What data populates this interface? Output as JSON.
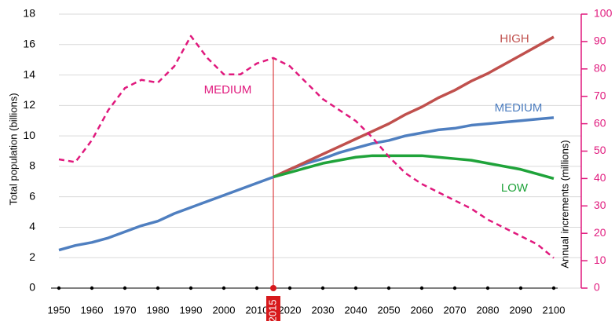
{
  "chart_data": {
    "type": "line",
    "y_label": "Total population (billions)",
    "y2_label": "Annual increments (millions)",
    "x": [
      1950,
      1955,
      1960,
      1965,
      1970,
      1975,
      1980,
      1985,
      1990,
      1995,
      2000,
      2005,
      2010,
      2015,
      2020,
      2025,
      2030,
      2035,
      2040,
      2045,
      2050,
      2055,
      2060,
      2065,
      2070,
      2075,
      2080,
      2085,
      2090,
      2095,
      2100
    ],
    "xlim": [
      1950,
      2100
    ],
    "xticks": [
      1950,
      1960,
      1970,
      1980,
      1990,
      2000,
      2010,
      2020,
      2030,
      2040,
      2050,
      2060,
      2070,
      2080,
      2090,
      2100
    ],
    "marker": {
      "x": 2015,
      "color": "#d7191c"
    },
    "ylim": [
      0,
      18
    ],
    "yticks": [
      0,
      2,
      4,
      6,
      8,
      10,
      12,
      14,
      16,
      18
    ],
    "y2lim": [
      0,
      100
    ],
    "y2ticks": [
      0,
      10,
      20,
      30,
      40,
      50,
      60,
      70,
      80,
      90,
      100
    ],
    "y2_color": "#e0197d",
    "grid": true,
    "series": [
      {
        "name": "MEDIUM",
        "color": "#4f7fc0",
        "dash": false,
        "values": [
          2.5,
          2.8,
          3.0,
          3.3,
          3.7,
          4.1,
          4.4,
          4.9,
          5.3,
          5.7,
          6.1,
          6.5,
          6.9,
          7.3,
          7.8,
          8.2,
          8.5,
          8.9,
          9.2,
          9.5,
          9.7,
          10.0,
          10.2,
          10.4,
          10.5,
          10.7,
          10.8,
          10.9,
          11.0,
          11.1,
          11.2
        ]
      },
      {
        "name": "HIGH",
        "color": "#c0504d",
        "dash": false,
        "values": [
          null,
          null,
          null,
          null,
          null,
          null,
          null,
          null,
          null,
          null,
          null,
          null,
          null,
          7.3,
          7.8,
          8.3,
          8.8,
          9.3,
          9.8,
          10.3,
          10.8,
          11.4,
          11.9,
          12.5,
          13.0,
          13.6,
          14.1,
          14.7,
          15.3,
          15.9,
          16.5
        ]
      },
      {
        "name": "LOW",
        "color": "#1fa33a",
        "dash": false,
        "values": [
          null,
          null,
          null,
          null,
          null,
          null,
          null,
          null,
          null,
          null,
          null,
          null,
          null,
          7.3,
          7.6,
          7.9,
          8.2,
          8.4,
          8.6,
          8.7,
          8.7,
          8.7,
          8.7,
          8.6,
          8.5,
          8.4,
          8.2,
          8.0,
          7.8,
          7.5,
          7.2
        ]
      },
      {
        "name": "MEDIUM",
        "color": "#e0197d",
        "dash": true,
        "axis": "y2",
        "values": [
          47,
          46,
          54,
          65,
          73,
          76,
          75,
          81,
          92,
          84,
          78,
          78,
          82,
          84,
          81,
          75,
          69,
          65,
          61,
          55,
          48,
          42,
          38,
          35,
          32,
          29,
          25,
          22,
          19,
          16,
          11
        ]
      }
    ]
  }
}
